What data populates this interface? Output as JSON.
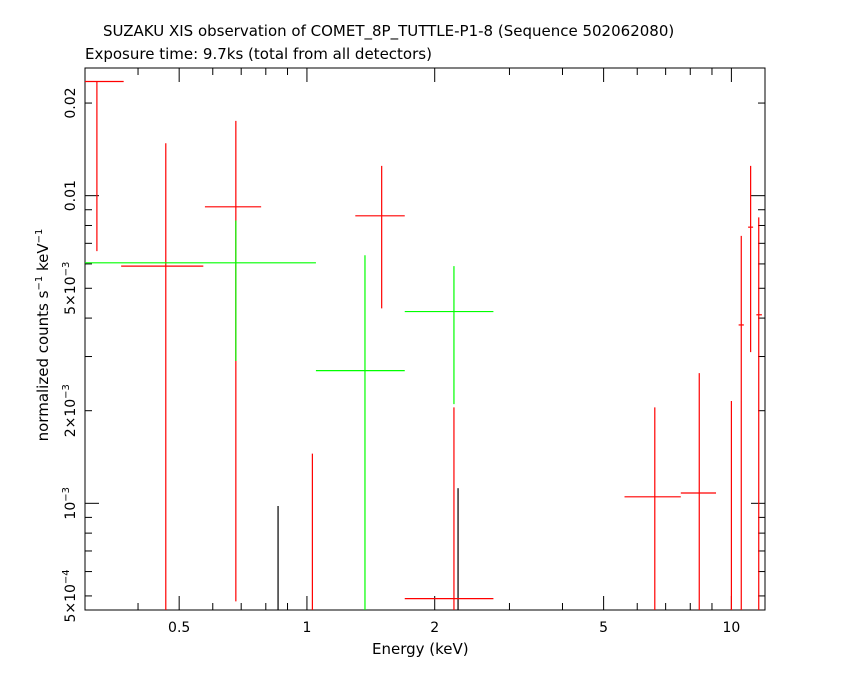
{
  "header": {
    "title": "SUZAKU XIS observation of COMET_8P_TUTTLE-P1-8 (Sequence 502062080)",
    "subtitle": "Exposure time: 9.7ks (total from all detectors)"
  },
  "chart_data": {
    "type": "scatter",
    "title": "SUZAKU XIS observation of COMET_8P_TUTTLE-P1-8 (Sequence 502062080)",
    "subtitle": "Exposure time: 9.7ks (total from all detectors)",
    "xlabel": "Energy (keV)",
    "ylabel": "normalized counts s-1 keV-1",
    "xscale": "log",
    "yscale": "log",
    "xlim": [
      0.3,
      12.0
    ],
    "ylim": [
      0.00045,
      0.026
    ],
    "grid": false,
    "x_ticks": [
      {
        "value": 0.5,
        "label": "0.5"
      },
      {
        "value": 1,
        "label": "1"
      },
      {
        "value": 2,
        "label": "2"
      },
      {
        "value": 5,
        "label": "5"
      },
      {
        "value": 10,
        "label": "10"
      }
    ],
    "y_ticks": [
      {
        "value": 0.0005,
        "label": "5×10",
        "exp": "-4"
      },
      {
        "value": 0.001,
        "label": "10",
        "exp": "-3"
      },
      {
        "value": 0.002,
        "label": "2×10",
        "exp": "-3"
      },
      {
        "value": 0.005,
        "label": "5×10",
        "exp": "-3"
      },
      {
        "value": 0.01,
        "label": "0.01",
        "exp": ""
      },
      {
        "value": 0.02,
        "label": "0.02",
        "exp": ""
      }
    ],
    "series": [
      {
        "color": "#000000",
        "points": [
          {
            "x": 0.855,
            "xlo": 0.855,
            "xhi": 0.855,
            "y": 0.00045,
            "ylo": 0.00045,
            "yhi": 0.00098
          },
          {
            "x": 2.27,
            "xlo": 2.27,
            "xhi": 2.27,
            "y": 0.00045,
            "ylo": 0.00045,
            "yhi": 0.00112
          }
        ]
      },
      {
        "color": "#ff0000",
        "points": [
          {
            "x": 0.32,
            "xlo": 0.3,
            "xhi": 0.37,
            "y": 0.0235,
            "ylo": 0.0066,
            "yhi": 0.0235
          },
          {
            "x": 0.465,
            "xlo": 0.365,
            "xhi": 0.57,
            "y": 0.0059,
            "ylo": 0.00045,
            "yhi": 0.0148
          },
          {
            "x": 0.68,
            "xlo": 0.575,
            "xhi": 0.78,
            "y": 0.0092,
            "ylo": 0.00048,
            "yhi": 0.0175
          },
          {
            "x": 1.03,
            "xlo": 1.03,
            "xhi": 1.03,
            "y": 0.00045,
            "ylo": 0.00045,
            "yhi": 0.00145
          },
          {
            "x": 1.5,
            "xlo": 1.3,
            "xhi": 1.7,
            "y": 0.0086,
            "ylo": 0.0043,
            "yhi": 0.0125
          },
          {
            "x": 2.22,
            "xlo": 1.7,
            "xhi": 2.75,
            "y": 0.00049,
            "ylo": 0.00045,
            "yhi": 0.00205
          },
          {
            "x": 6.6,
            "xlo": 5.6,
            "xhi": 7.6,
            "y": 0.00105,
            "ylo": 0.00045,
            "yhi": 0.00205
          },
          {
            "x": 8.4,
            "xlo": 7.6,
            "xhi": 9.2,
            "y": 0.00108,
            "ylo": 0.00045,
            "yhi": 0.00265
          },
          {
            "x": 10.0,
            "xlo": 10.0,
            "xhi": 10.0,
            "y": 0.00045,
            "ylo": 0.00045,
            "yhi": 0.00215
          },
          {
            "x": 10.55,
            "xlo": 10.4,
            "xhi": 10.7,
            "y": 0.0038,
            "ylo": 0.00045,
            "yhi": 0.0074
          },
          {
            "x": 11.1,
            "xlo": 10.95,
            "xhi": 11.25,
            "y": 0.0079,
            "ylo": 0.0031,
            "yhi": 0.0125
          },
          {
            "x": 11.6,
            "xlo": 11.45,
            "xhi": 11.8,
            "y": 0.0041,
            "ylo": 0.00045,
            "yhi": 0.0085
          }
        ]
      },
      {
        "color": "#00ff00",
        "points": [
          {
            "x": 0.68,
            "xlo": 0.3,
            "xhi": 1.05,
            "y": 0.00605,
            "ylo": 0.0029,
            "yhi": 0.0083
          },
          {
            "x": 1.37,
            "xlo": 1.05,
            "xhi": 1.7,
            "y": 0.0027,
            "ylo": 0.00045,
            "yhi": 0.0064
          },
          {
            "x": 2.22,
            "xlo": 1.7,
            "xhi": 2.75,
            "y": 0.0042,
            "ylo": 0.0021,
            "yhi": 0.0059
          }
        ]
      }
    ]
  }
}
